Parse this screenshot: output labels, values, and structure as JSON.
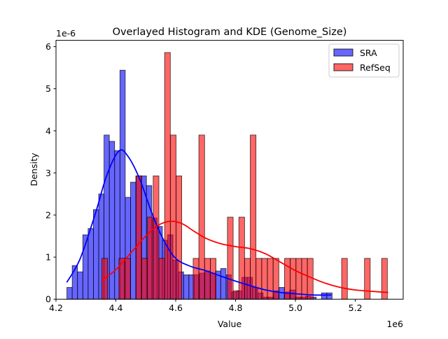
{
  "chart_data": {
    "type": "histogram+kde",
    "title": "Overlayed Histogram and KDE (Genome_Size)",
    "xlabel": "Value",
    "ylabel": "Density",
    "x_offset_label": "1e6",
    "y_offset_label": "1e-6",
    "xlim": [
      4.2,
      5.36
    ],
    "ylim": [
      0,
      6.15
    ],
    "xticks": [
      "4.2",
      "4.4",
      "4.6",
      "4.8",
      "5.0",
      "5.2"
    ],
    "yticks": [
      "0",
      "1",
      "2",
      "3",
      "4",
      "5",
      "6"
    ],
    "grid": false,
    "legend_position": "top-right",
    "series": [
      {
        "name": "SRA",
        "color": "#0000ff",
        "bin_start": 4.2364,
        "bin_width": 0.01772,
        "values": [
          0.28,
          0.8,
          0.65,
          1.53,
          1.68,
          2.13,
          2.5,
          3.9,
          3.75,
          3.53,
          5.44,
          2.42,
          2.78,
          2.93,
          2.93,
          2.7,
          1.93,
          1.73,
          1.4,
          1.53,
          0.93,
          0.65,
          0.58,
          0.58,
          0.58,
          0.62,
          0.67,
          0.62,
          0.67,
          0.73,
          0.58,
          0.17,
          0.2,
          0.52,
          0.52,
          0.28,
          0.15,
          0.05,
          0.05,
          0.2,
          0.28,
          0.17,
          0.22,
          0.05,
          0.05,
          0.07,
          0.05,
          0,
          0.15,
          0.15
        ],
        "kde": [
          [
            4.236,
            0.4
          ],
          [
            4.28,
            0.95
          ],
          [
            4.33,
            2.0
          ],
          [
            4.37,
            2.95
          ],
          [
            4.41,
            3.52
          ],
          [
            4.44,
            3.4
          ],
          [
            4.48,
            2.85
          ],
          [
            4.52,
            2.05
          ],
          [
            4.56,
            1.4
          ],
          [
            4.6,
            0.97
          ],
          [
            4.65,
            0.78
          ],
          [
            4.7,
            0.68
          ],
          [
            4.75,
            0.55
          ],
          [
            4.8,
            0.43
          ],
          [
            4.85,
            0.32
          ],
          [
            4.9,
            0.22
          ],
          [
            4.95,
            0.16
          ],
          [
            5.0,
            0.13
          ],
          [
            5.06,
            0.1
          ],
          [
            5.12,
            0.1
          ]
        ]
      },
      {
        "name": "RefSeq",
        "color": "#ff0000",
        "bin_start": 4.353,
        "bin_width": 0.01908,
        "values": [
          0.97,
          0,
          0,
          0.97,
          0.97,
          0,
          2.93,
          0.97,
          1.95,
          2.93,
          0.97,
          5.86,
          3.9,
          2.93,
          0,
          0,
          0.97,
          3.9,
          0.97,
          0.97,
          0,
          0,
          1.95,
          0.2,
          1.95,
          0.97,
          3.9,
          0.97,
          0.97,
          0.97,
          0.97,
          0,
          0.97,
          0.97,
          0.97,
          0.97,
          0.97,
          0,
          0,
          0,
          0,
          0,
          0.97,
          0,
          0,
          0,
          0.97,
          0,
          0,
          0.97
        ],
        "kde": [
          [
            4.353,
            0.45
          ],
          [
            4.4,
            0.7
          ],
          [
            4.45,
            1.1
          ],
          [
            4.5,
            1.5
          ],
          [
            4.54,
            1.75
          ],
          [
            4.58,
            1.85
          ],
          [
            4.62,
            1.8
          ],
          [
            4.66,
            1.62
          ],
          [
            4.7,
            1.45
          ],
          [
            4.75,
            1.32
          ],
          [
            4.8,
            1.25
          ],
          [
            4.85,
            1.2
          ],
          [
            4.9,
            1.08
          ],
          [
            4.95,
            0.88
          ],
          [
            5.0,
            0.68
          ],
          [
            5.05,
            0.52
          ],
          [
            5.1,
            0.38
          ],
          [
            5.15,
            0.28
          ],
          [
            5.2,
            0.22
          ],
          [
            5.25,
            0.19
          ],
          [
            5.31,
            0.16
          ]
        ]
      }
    ]
  }
}
